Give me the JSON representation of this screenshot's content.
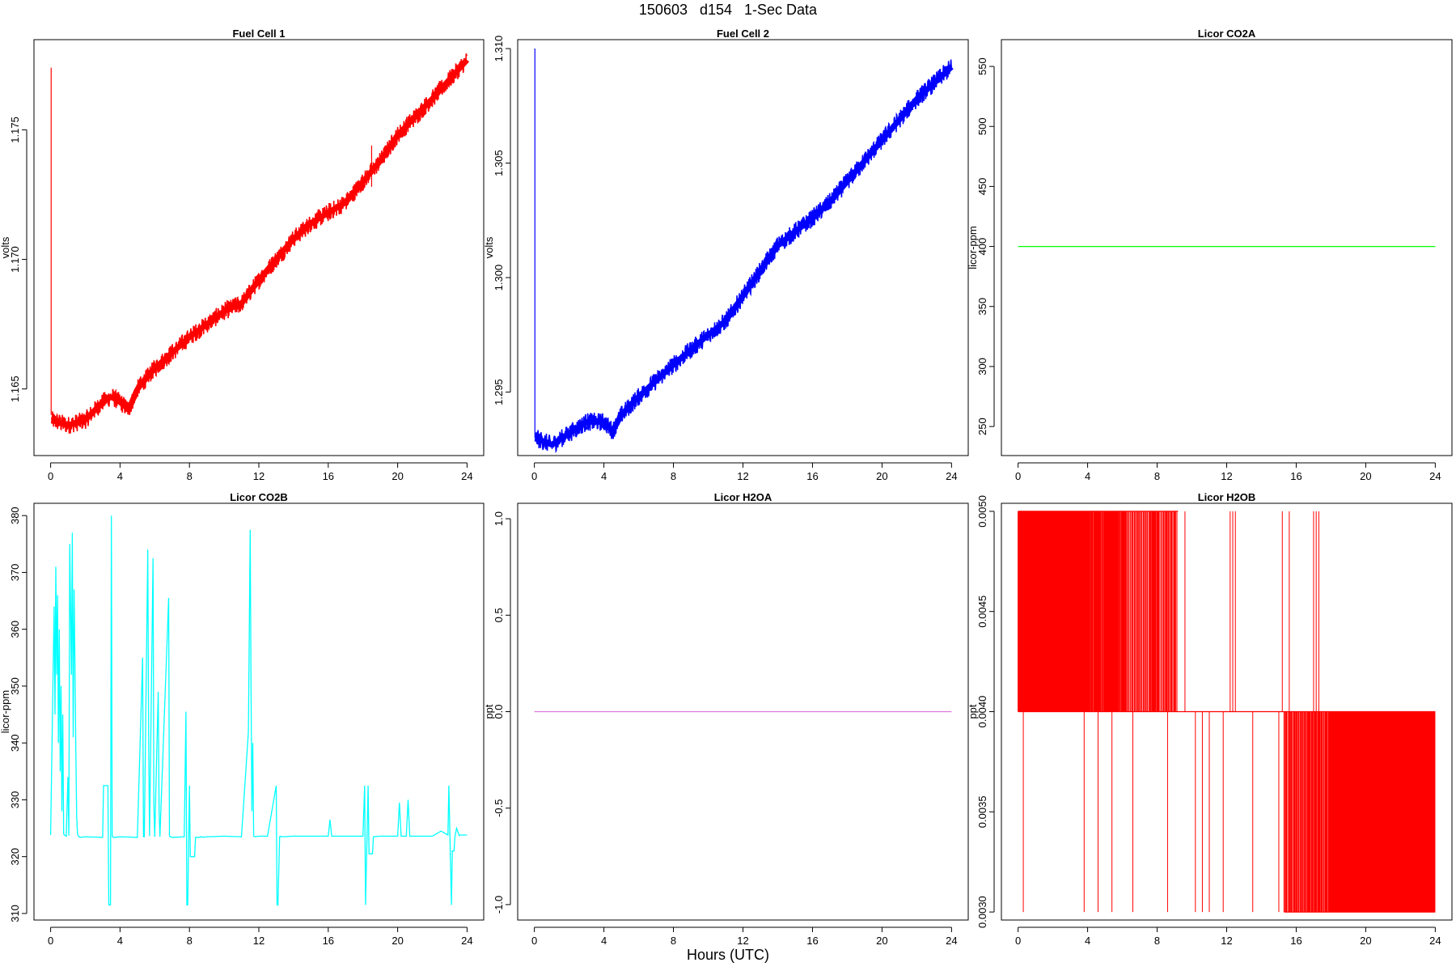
{
  "figure": {
    "title": "150603   d154   1-Sec Data",
    "xlabel": "Hours (UTC)"
  },
  "chart_data": [
    {
      "type": "line",
      "title": "Fuel Cell 1",
      "ylabel": "volts",
      "color": "#ff0000",
      "xlim": [
        -0.96,
        24.96
      ],
      "ylim": [
        1.16243,
        1.17848
      ],
      "xticks": [
        0,
        4,
        8,
        12,
        16,
        20,
        24
      ],
      "yticks": [
        1.165,
        1.17,
        1.175
      ],
      "ytick_labels": [
        "1.165",
        "1.170",
        "1.175"
      ],
      "noise": 0.00035,
      "spikes": [
        {
          "x": 0.03,
          "from": 1.164,
          "to": 1.1774
        },
        {
          "x": 18.5,
          "from": 1.1728,
          "to": 1.1744
        }
      ],
      "x": [
        0,
        0.05,
        1,
        2,
        3,
        3.5,
        4,
        4.5,
        5,
        6,
        8,
        10,
        11,
        12,
        14,
        15,
        16,
        17,
        18,
        19,
        20,
        22,
        24
      ],
      "y": [
        1.1775,
        1.1638,
        1.1636,
        1.1638,
        1.1645,
        1.1647,
        1.1645,
        1.1642,
        1.165,
        1.1658,
        1.167,
        1.168,
        1.1683,
        1.1692,
        1.1708,
        1.1714,
        1.1718,
        1.1722,
        1.173,
        1.1738,
        1.1748,
        1.1762,
        1.1777
      ]
    },
    {
      "type": "line",
      "title": "Fuel Cell 2",
      "ylabel": "volts",
      "color": "#0000ff",
      "xlim": [
        -0.96,
        24.96
      ],
      "ylim": [
        1.29223,
        1.31039
      ],
      "xticks": [
        0,
        4,
        8,
        12,
        16,
        20,
        24
      ],
      "yticks": [
        1.295,
        1.3,
        1.305,
        1.31
      ],
      "ytick_labels": [
        "1.295",
        "1.300",
        "1.305",
        "1.310"
      ],
      "noise": 0.0004,
      "spikes": [
        {
          "x": 0.03,
          "from": 1.293,
          "to": 1.31
        }
      ],
      "x": [
        0,
        0.05,
        1,
        2,
        3,
        4,
        4.5,
        5,
        6,
        8,
        10,
        11,
        12,
        14,
        15,
        16,
        17,
        18,
        20,
        22,
        24
      ],
      "y": [
        1.31,
        1.293,
        1.2927,
        1.2932,
        1.2937,
        1.2937,
        1.2933,
        1.294,
        1.2948,
        1.2962,
        1.2975,
        1.2981,
        1.2992,
        1.3014,
        1.302,
        1.3026,
        1.3033,
        1.3042,
        1.306,
        1.3078,
        1.3092
      ]
    },
    {
      "type": "line",
      "title": "Licor CO2A",
      "ylabel": "licor-ppm",
      "color": "#00ff00",
      "xlim": [
        -0.96,
        24.96
      ],
      "ylim": [
        225.8,
        572.3
      ],
      "xticks": [
        0,
        4,
        8,
        12,
        16,
        20,
        24
      ],
      "yticks": [
        250,
        300,
        350,
        400,
        450,
        500,
        550
      ],
      "ytick_labels": [
        "250",
        "300",
        "350",
        "400",
        "450",
        "500",
        "550"
      ],
      "x": [
        0,
        24
      ],
      "y": [
        400,
        400
      ]
    },
    {
      "type": "line",
      "title": "Licor CO2B",
      "ylabel": "licor-ppm",
      "color": "#00ffff",
      "xlim": [
        -0.96,
        24.96
      ],
      "ylim": [
        308.85,
        382.16
      ],
      "xticks": [
        0,
        4,
        8,
        12,
        16,
        20,
        24
      ],
      "yticks": [
        310,
        320,
        330,
        340,
        350,
        360,
        370,
        380
      ],
      "ytick_labels": [
        "310",
        "320",
        "330",
        "340",
        "350",
        "360",
        "370",
        "380"
      ],
      "x": [
        0,
        0.2,
        0.25,
        0.3,
        0.35,
        0.4,
        0.45,
        0.5,
        0.55,
        0.6,
        0.65,
        0.7,
        0.75,
        0.8,
        0.9,
        1.0,
        1.05,
        1.1,
        1.2,
        1.25,
        1.3,
        1.35,
        1.4,
        1.45,
        1.5,
        1.55,
        1.6,
        1.7,
        2.0,
        3.0,
        3.05,
        3.3,
        3.35,
        3.45,
        3.5,
        3.55,
        3.6,
        3.7,
        4.0,
        5.0,
        5.3,
        5.35,
        5.4,
        5.6,
        5.65,
        5.7,
        5.9,
        5.95,
        6.0,
        6.2,
        6.25,
        6.3,
        6.8,
        6.85,
        6.9,
        7.0,
        7.7,
        7.8,
        7.85,
        7.9,
        8.0,
        8.05,
        8.3,
        8.35,
        8.6,
        8.65,
        8.85,
        8.9,
        9.0,
        10.0,
        11.0,
        11.4,
        11.5,
        11.55,
        11.6,
        11.65,
        11.7,
        11.8,
        12.0,
        12.5,
        13.0,
        13.05,
        13.1,
        13.2,
        13.25,
        13.3,
        14.0,
        15.0,
        16.0,
        16.1,
        16.2,
        17.0,
        18.0,
        18.1,
        18.15,
        18.3,
        18.35,
        18.55,
        18.6,
        19.0,
        20.0,
        20.1,
        20.2,
        20.5,
        20.6,
        20.7,
        21.0,
        22.0,
        22.5,
        22.9,
        22.95,
        23.1,
        23.15,
        23.25,
        23.3,
        23.4,
        23.55,
        23.6,
        23.7,
        24.0
      ],
      "y": [
        323.8,
        364,
        345,
        371,
        352,
        366,
        340,
        360,
        335,
        350,
        328,
        345,
        324,
        323.8,
        323.6,
        334,
        323.7,
        375,
        352,
        377,
        341,
        367,
        355,
        339,
        327,
        324,
        323.6,
        323.4,
        323.5,
        323.4,
        332.5,
        332.5,
        311.5,
        311.5,
        380,
        323.6,
        323.4,
        323.4,
        323.5,
        323.4,
        355,
        323.5,
        323.5,
        374,
        340,
        323.6,
        372.5,
        329,
        323.5,
        349,
        328,
        323.5,
        365.5,
        323.6,
        323.5,
        323.4,
        323.5,
        345.5,
        311.5,
        311.5,
        332.5,
        320,
        320,
        323.4,
        323.4,
        323.5,
        323.4,
        323.5,
        323.5,
        323.6,
        323.5,
        342,
        377.5,
        351,
        328,
        340,
        323.6,
        323.5,
        323.6,
        323.6,
        332.5,
        311.5,
        311.5,
        323.5,
        323.6,
        323.5,
        323.6,
        323.6,
        323.6,
        326.5,
        323.6,
        323.6,
        323.6,
        332.5,
        311.5,
        332.5,
        320.5,
        320.5,
        323.5,
        323.6,
        323.6,
        329.5,
        323.6,
        323.6,
        330,
        323.6,
        323.6,
        323.6,
        324.5,
        323.8,
        332.5,
        311.5,
        321,
        321,
        323.5,
        325,
        323.7,
        323.8,
        323.8,
        323.8
      ]
    },
    {
      "type": "line",
      "title": "Licor H2OA",
      "ylabel": "ppt",
      "color": "#dd77dd",
      "xlim": [
        -0.96,
        24.96
      ],
      "ylim": [
        -1.08,
        1.08
      ],
      "xticks": [
        0,
        4,
        8,
        12,
        16,
        20,
        24
      ],
      "yticks": [
        -1.0,
        -0.5,
        0.0,
        0.5,
        1.0
      ],
      "ytick_labels": [
        "-1.0",
        "-0.5",
        "0.0",
        "0.5",
        "1.0"
      ],
      "x": [
        0,
        24
      ],
      "y": [
        0,
        0
      ]
    },
    {
      "type": "line",
      "title": "Licor H2OB",
      "ylabel": "ppt",
      "color": "#ff0000",
      "xlim": [
        -0.96,
        24.96
      ],
      "ylim": [
        0.00296,
        0.00504
      ],
      "xticks": [
        0,
        4,
        8,
        12,
        16,
        20,
        24
      ],
      "yticks": [
        0.003,
        0.0035,
        0.004,
        0.0045,
        0.005
      ],
      "ytick_labels": [
        "0.0030",
        "0.0035",
        "0.0040",
        "0.0045",
        "0.0050"
      ],
      "baseline": 0.004,
      "x": [
        0,
        24
      ],
      "y": [
        0.004,
        0.004
      ],
      "dense_up_ranges": [
        [
          0.0,
          3.6
        ],
        [
          3.6,
          6.2
        ],
        [
          6.2,
          9.2
        ]
      ],
      "sparse_up": [
        9.6,
        12.2,
        12.35,
        12.5,
        15.2,
        15.6,
        17.0,
        17.15,
        17.3
      ],
      "sparse_down": [
        0.3,
        3.8,
        4.6,
        5.4,
        6.6,
        8.6,
        10.2,
        10.6,
        11.0,
        11.8,
        13.5,
        15.0
      ],
      "dense_down_ranges": [
        [
          15.3,
          18.0
        ],
        [
          18.0,
          21.0
        ],
        [
          21.0,
          24.0
        ]
      ]
    }
  ]
}
